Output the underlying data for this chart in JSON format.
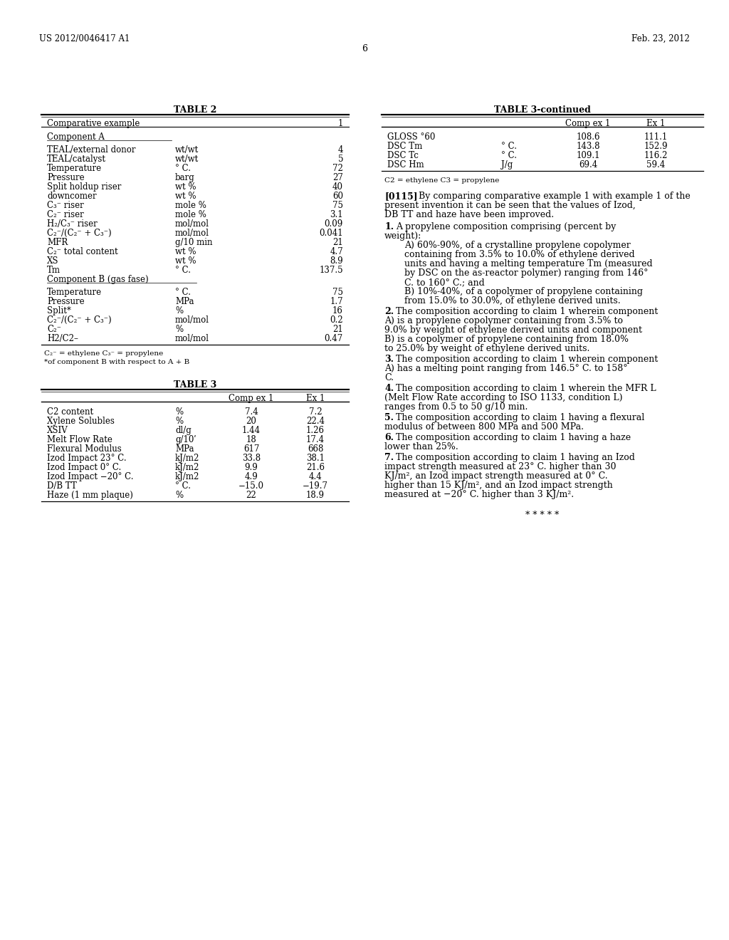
{
  "header_left": "US 2012/0046417 A1",
  "header_right": "Feb. 23, 2012",
  "page_number": "6",
  "table2_title": "TABLE 2",
  "table2_col1": "Comparative example",
  "table2_col3": "1",
  "table2_section_a": "Component A",
  "table2_rows_a": [
    [
      "TEAL/external donor",
      "wt/wt",
      "4"
    ],
    [
      "TEAL/catalyst",
      "wt/wt",
      "5"
    ],
    [
      "Temperature",
      "° C.",
      "72"
    ],
    [
      "Pressure",
      "barg",
      "27"
    ],
    [
      "Split holdup riser",
      "wt %",
      "40"
    ],
    [
      "downcomer",
      "wt %",
      "60"
    ],
    [
      "C₃⁻ riser",
      "mole %",
      "75"
    ],
    [
      "C₂⁻ riser",
      "mole %",
      "3.1"
    ],
    [
      "H₂/C₃⁻ riser",
      "mol/mol",
      "0.09"
    ],
    [
      "C₂⁻/(C₂⁻ + C₃⁻)",
      "mol/mol",
      "0.041"
    ],
    [
      "MFR",
      "g/10 min",
      "21"
    ],
    [
      "C₂⁻ total content",
      "wt %",
      "4.7"
    ],
    [
      "XS",
      "wt %",
      "8.9"
    ],
    [
      "Tm",
      "° C.",
      "137.5"
    ]
  ],
  "table2_section_b": "Component B (gas fase)",
  "table2_rows_b": [
    [
      "Temperature",
      "° C.",
      "75"
    ],
    [
      "Pressure",
      "MPa",
      "1.7"
    ],
    [
      "Split*",
      "%",
      "16"
    ],
    [
      "C₂⁻/(C₂⁻ + C₃⁻)",
      "mol/mol",
      "0.2"
    ],
    [
      "C₂⁻",
      "%",
      "21"
    ],
    [
      "H2/C2–",
      "mol/mol",
      "0.47"
    ]
  ],
  "table2_footnote1": "C₂⁻ = ethylene C₃⁻ = propylene",
  "table2_footnote2": "*of component B with respect to A + B",
  "table3_title": "TABLE 3",
  "table3_col3": "Comp ex 1",
  "table3_col4": "Ex 1",
  "table3_rows": [
    [
      "C2 content",
      "%",
      "7.4",
      "7.2"
    ],
    [
      "Xylene Solubles",
      "%",
      "20",
      "22.4"
    ],
    [
      "XSIV",
      "dl/g",
      "1.44",
      "1.26"
    ],
    [
      "Melt Flow Rate",
      "g/10ʹ",
      "18",
      "17.4"
    ],
    [
      "Flexural Modulus",
      "MPa",
      "617",
      "668"
    ],
    [
      "Izod Impact 23° C.",
      "kJ/m2",
      "33.8",
      "38.1"
    ],
    [
      "Izod Impact 0° C.",
      "kJ/m2",
      "9.9",
      "21.6"
    ],
    [
      "Izod Impact −20° C.",
      "kJ/m2",
      "4.9",
      "4.4"
    ],
    [
      "D/B TT",
      "° C.",
      "−15.0",
      "−19.7"
    ],
    [
      "Haze (1 mm plaque)",
      "%",
      "22",
      "18.9"
    ]
  ],
  "table3_continued_title": "TABLE 3-continued",
  "table3_continued_rows": [
    [
      "GLOSS °60",
      "",
      "108.6",
      "111.1"
    ],
    [
      "DSC Tm",
      "° C.",
      "143.8",
      "152.9"
    ],
    [
      "DSC Tc",
      "° C.",
      "109.1",
      "116.2"
    ],
    [
      "DSC Hm",
      "J/g",
      "69.4",
      "59.4"
    ]
  ],
  "table3_footnote": "C2 = ethylene C3 = propylene",
  "para0115": "[0115]",
  "para0115_text": "By comparing comparative example 1 with example 1 of the present invention it can be seen that the values of Izod, DB TT and haze have been improved.",
  "claim1_num": "1.",
  "claim1_main": "A propylene composition comprising (percent by weight):",
  "claim1_subA": "A) 60%-90%, of a crystalline propylene copolymer containing from 3.5% to 10.0% of ethylene derived units and having a melting temperature Tm (measured by DSC on the as-reactor polymer) ranging from 146° C. to 160° C.; and",
  "claim1_subB": "B) 10%-40%, of a copolymer of propylene containing from 15.0% to 30.0%, of ethylene derived units.",
  "claim2_num": "2.",
  "claim2_text": "The composition according to claim 1 wherein component A) is a propylene copolymer containing from 3.5% to 9.0% by weight of ethylene derived units and component B) is a copolymer of propylene containing from 18.0% to 25.0% by weight of ethylene derived units.",
  "claim3_num": "3.",
  "claim3_text": "The composition according to claim 1 wherein component A) has a melting point ranging from 146.5° C. to 158° C.",
  "claim4_num": "4.",
  "claim4_text": "The composition according to claim 1 wherein the MFR L (Melt Flow Rate according to ISO 1133, condition L) ranges from 0.5 to 50 g/10 min.",
  "claim5_num": "5.",
  "claim5_text": "The composition according to claim 1 having a flexural modulus of between 800 MPa and 500 MPa.",
  "claim6_num": "6.",
  "claim6_text": "The composition according to claim 1 having a haze lower than 25%.",
  "claim7_num": "7.",
  "claim7_text": "The composition according to claim 1 having an Izod impact strength measured at 23° C. higher than 30 KJ/m², an Izod impact strength measured at 0° C. higher than 15 KJ/m², and an Izod impact strength measured at −20° C. higher than 3 KJ/m².",
  "stars": "* * * * *"
}
